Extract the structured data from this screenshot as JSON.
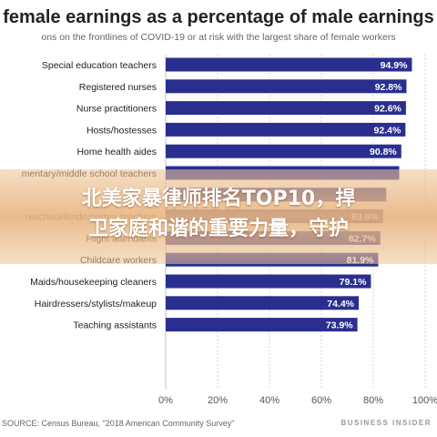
{
  "headline": {
    "line1": "北美家暴律师排名TOP10，捍",
    "line2": "卫家庭和谐的重要力量，守护"
  },
  "footer": {
    "source": "SOURCE: Census Bureau, \"2018 American Community Survey\"",
    "brand": "BUSINESS INSIDER"
  },
  "colors": {
    "bar": "#2a2f8f",
    "grid": "#cccccc",
    "text": "#222222"
  },
  "chart_data": {
    "type": "bar",
    "orientation": "horizontal",
    "title": "female earnings as a percentage of male earnings",
    "subtitle": "ons on the frontlines of COVID-19 or at risk with the largest share of female workers",
    "categories": [
      "Special education teachers",
      "Registered nurses",
      "Nurse practitioners",
      "Hosts/hostesses",
      "Home health aides",
      "mentary/middle school teachers",
      "",
      "reschool/kindergarten teachers",
      "Flight attendants",
      "Childcare workers",
      "Maids/housekeeping cleaners",
      "Hairdressers/stylists/makeup",
      "Teaching assistants"
    ],
    "values": [
      94.9,
      92.8,
      92.6,
      92.4,
      90.8,
      90.0,
      85.0,
      83.8,
      82.7,
      81.9,
      79.1,
      74.4,
      73.9
    ],
    "value_labels": [
      "94.9%",
      "92.8%",
      "92.6%",
      "92.4%",
      "90.8%",
      "",
      "",
      "83.8%",
      "82.7%",
      "81.9%",
      "79.1%",
      "74.4%",
      "73.9%"
    ],
    "x_ticks": [
      "0%",
      "20%",
      "40%",
      "60%",
      "80%",
      "100%"
    ],
    "xlim": [
      0,
      100
    ],
    "grid": true
  }
}
